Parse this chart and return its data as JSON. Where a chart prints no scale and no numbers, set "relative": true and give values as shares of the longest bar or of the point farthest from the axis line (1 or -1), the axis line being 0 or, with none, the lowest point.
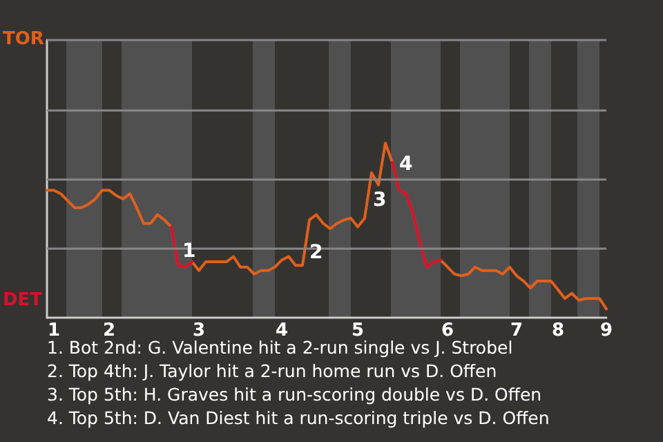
{
  "chart_data": {
    "type": "line",
    "relative": true,
    "categories": [
      null,
      "1",
      null,
      null,
      null,
      null,
      null,
      null,
      null,
      "2",
      null,
      null,
      null,
      null,
      null,
      null,
      null,
      null,
      null,
      null,
      null,
      null,
      "3",
      null,
      null,
      null,
      null,
      null,
      null,
      null,
      null,
      null,
      null,
      null,
      "4",
      null,
      null,
      null,
      null,
      null,
      null,
      null,
      null,
      null,
      null,
      "5",
      null,
      null,
      null,
      null,
      null,
      null,
      null,
      null,
      null,
      null,
      null,
      null,
      "6",
      null,
      null,
      null,
      null,
      null,
      null,
      null,
      null,
      null,
      "7",
      null,
      null,
      null,
      null,
      null,
      "8",
      null,
      null,
      null,
      null,
      null,
      null,
      "9"
    ],
    "series": [
      {
        "color": "#e0601e",
        "values": [
          0.73,
          0.73,
          0.71,
          0.67,
          0.63,
          0.63,
          0.65,
          0.68,
          0.73,
          0.73,
          0.7,
          0.68,
          0.71,
          0.63,
          0.54,
          0.54,
          0.59,
          0.56,
          0.52,
          0.3,
          0.29,
          0.32,
          0.27,
          0.32,
          0.32,
          0.32,
          0.32,
          0.35,
          0.29,
          0.29,
          0.25,
          0.27,
          0.27,
          0.29,
          0.33,
          0.35,
          0.3,
          0.3,
          0.56,
          0.59,
          0.54,
          0.51,
          0.54,
          0.56,
          0.57,
          0.52,
          0.57,
          0.83,
          0.76,
          1,
          0.89,
          0.73,
          0.71,
          0.6,
          0.43,
          0.29,
          0.32,
          0.33,
          0.29,
          0.25,
          0.24,
          0.25,
          0.29,
          0.27,
          0.27,
          0.27,
          0.25,
          0.29,
          0.24,
          0.21,
          0.17,
          0.21,
          0.21,
          0.21,
          0.16,
          0.11,
          0.14,
          0.1,
          0.11,
          0.11,
          0.11,
          0.05
        ]
      },
      {
        "color": "#d4122e",
        "values": [
          null,
          null,
          null,
          null,
          null,
          null,
          null,
          null,
          null,
          null,
          null,
          null,
          null,
          null,
          null,
          null,
          null,
          null,
          0.52,
          0.3,
          0.29,
          0.32,
          null,
          null,
          null,
          null,
          null,
          null,
          null,
          null,
          null,
          null,
          null,
          null,
          null,
          null,
          null,
          null,
          null,
          null,
          null,
          null,
          null,
          null,
          null,
          null,
          null,
          null,
          null,
          null,
          0.89,
          0.73,
          0.71,
          0.6,
          0.43,
          0.29,
          0.32,
          0.33,
          null,
          null,
          null,
          null,
          null,
          null,
          null,
          null,
          null,
          null,
          null,
          null,
          null,
          null,
          null,
          null,
          null,
          null,
          null,
          null,
          null,
          null,
          null,
          null
        ]
      }
    ],
    "ref_lines": [
      {
        "axis": "y",
        "value": 0.4,
        "color": "#888888"
      },
      {
        "axis": "y",
        "value": 0.79,
        "color": "#888888"
      },
      {
        "axis": "y",
        "value": 1.19,
        "color": "#888888"
      },
      {
        "axis": "y",
        "value": 1.59,
        "color": "#888888"
      }
    ],
    "annotations": [
      "TOR",
      "DET",
      "1",
      "2",
      "3",
      "4",
      "1. Bot 2nd: G. Valentine hit a 2-run single vs J. Strobel",
      "2. Top 4th: J. Taylor hit a 2-run home run vs D. Offen",
      "3. Top 5th: H. Graves hit a run-scoring double vs D. Offen",
      "4. Top 5th: D. Van Diest hit a run-scoring triple vs D. Offen"
    ]
  }
}
